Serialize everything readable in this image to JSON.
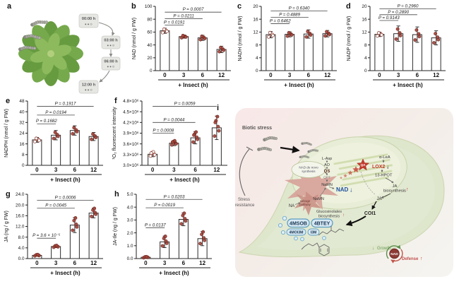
{
  "panel_a": {
    "letter": "a",
    "timepoints": [
      "00:00 h",
      "03:00 h",
      "06:00 h",
      "12:00 h"
    ],
    "box_icons": "● ● ⊙"
  },
  "charts": [
    {
      "letter": "b",
      "name": "nad",
      "ylabel": "NAD (nmol / g FW)",
      "ymin": 0,
      "ymax": 100,
      "yticks": [
        0,
        20,
        40,
        60,
        80,
        100
      ],
      "categories": [
        "0",
        "3",
        "6",
        "12"
      ],
      "xlabel": "+ Insect (h)",
      "values": [
        62,
        53,
        51,
        33
      ],
      "errors": [
        4,
        2.5,
        4,
        5
      ],
      "ndots": 4,
      "hollow0": true,
      "brackets": [
        {
          "a": 0,
          "b": 1,
          "y": 71,
          "label": "P = 0.0191"
        },
        {
          "a": 0,
          "b": 2,
          "y": 81,
          "label": "P = 0.0211"
        },
        {
          "a": 0,
          "b": 3,
          "y": 91,
          "label": "P = 0.0007"
        }
      ]
    },
    {
      "letter": "c",
      "name": "nadh",
      "ylabel": "NADH (nmol / g FW)",
      "ymin": 0,
      "ymax": 20,
      "yticks": [
        0,
        4,
        8,
        12,
        16,
        20
      ],
      "categories": [
        "0",
        "3",
        "6",
        "12"
      ],
      "xlabel": "+ Insect (h)",
      "values": [
        11.2,
        11.3,
        11.4,
        11.5
      ],
      "errors": [
        1.0,
        0.8,
        1.3,
        1.0
      ],
      "ndots": 4,
      "hollow0": true,
      "brackets": [
        {
          "a": 0,
          "b": 1,
          "y": 14.6,
          "label": "P = 0.6462"
        },
        {
          "a": 0,
          "b": 2,
          "y": 16.6,
          "label": "P = 0.4889"
        },
        {
          "a": 0,
          "b": 3,
          "y": 18.6,
          "label": "P = 0.6340"
        }
      ]
    },
    {
      "letter": "d",
      "name": "nadp",
      "ylabel": "NADP (nmol / g FW)",
      "ymin": 0,
      "ymax": 20,
      "yticks": [
        0,
        4,
        8,
        12,
        16,
        20
      ],
      "categories": [
        "0",
        "3",
        "6",
        "12"
      ],
      "xlabel": "+ Insect (h)",
      "values": [
        11.3,
        11.5,
        11.2,
        10.2
      ],
      "errors": [
        0.7,
        2.4,
        2.4,
        2.2
      ],
      "ndots": 4,
      "hollow0": true,
      "brackets": [
        {
          "a": 0,
          "b": 1,
          "y": 15.6,
          "label": "P = 0.9143"
        },
        {
          "a": 0,
          "b": 2,
          "y": 17.4,
          "label": "P = 0.2890"
        },
        {
          "a": 0,
          "b": 3,
          "y": 19.2,
          "label": "P = 0.2960"
        }
      ]
    },
    {
      "letter": "e",
      "name": "nadph",
      "ylabel": "NADPH (nmol / g FW)",
      "ymin": 0,
      "ymax": 48,
      "yticks": [
        0,
        8,
        16,
        24,
        32,
        40,
        48
      ],
      "categories": [
        "0",
        "3",
        "6",
        "12"
      ],
      "xlabel": "+ Insect (h)",
      "values": [
        19,
        22.5,
        26,
        21.5
      ],
      "errors": [
        1.8,
        3.5,
        3.5,
        3.0
      ],
      "ndots": 4,
      "hollow0": true,
      "brackets": [
        {
          "a": 0,
          "b": 1,
          "y": 31,
          "label": "P = 0.1682"
        },
        {
          "a": 0,
          "b": 2,
          "y": 37.5,
          "label": "P = 0.0194"
        },
        {
          "a": 0,
          "b": 3,
          "y": 44,
          "label": "P = 0.1917"
        }
      ]
    },
    {
      "letter": "f",
      "name": "singlet-o2",
      "ylabel": "¹O₂ fluorescent intensity",
      "ymin": 3.0,
      "ymax": 4.8,
      "yticks": [
        3.0,
        3.3,
        3.6,
        3.9,
        4.2,
        4.5,
        4.8
      ],
      "yticklabels": [
        "3.0×10⁶",
        "3.3×10⁶",
        "3.6×10⁶",
        "3.9×10⁶",
        "4.2×10⁶",
        "4.5×10⁶",
        "4.8×10⁶"
      ],
      "categories": [
        "0",
        "3",
        "6",
        "12"
      ],
      "xlabel": "+ Insect (h)",
      "mleft": 45,
      "values": [
        3.31,
        3.62,
        3.77,
        4.05
      ],
      "errors": [
        0.07,
        0.07,
        0.17,
        0.33
      ],
      "ndots": 6,
      "hollow0": true,
      "brackets": [
        {
          "a": 0,
          "b": 1,
          "y": 3.9,
          "label": "P = 0.0008"
        },
        {
          "a": 0,
          "b": 2,
          "y": 4.2,
          "label": "P = 0.0044"
        },
        {
          "a": 0,
          "b": 3,
          "y": 4.65,
          "label": "P = 0.0059"
        }
      ]
    },
    {
      "letter": "g",
      "name": "ja",
      "ylabel": "JA (ng / g FW)",
      "ymin": 0,
      "ymax": 24,
      "yticks": [
        0,
        4,
        8,
        12,
        16,
        20,
        24
      ],
      "yticklabels": [
        "0.0",
        "4.0",
        "8.0",
        "12.0",
        "16.0",
        "20.0",
        "24.0"
      ],
      "categories": [
        "0",
        "3",
        "6",
        "12"
      ],
      "xlabel": "+ Insect (h)",
      "values": [
        1.2,
        4.5,
        12.5,
        17
      ],
      "errors": [
        0.3,
        0.4,
        2.8,
        1.8
      ],
      "ndots": 5,
      "hollow0": false,
      "brackets": [
        {
          "a": 0,
          "b": 1,
          "y": 7.6,
          "label": "P = 3.6 × 10⁻⁵"
        },
        {
          "a": 0,
          "b": 2,
          "y": 18.8,
          "label": "P = 0.0045"
        },
        {
          "a": 0,
          "b": 3,
          "y": 21.8,
          "label": "P = 0.0006"
        }
      ]
    },
    {
      "letter": "h",
      "name": "ja-ile",
      "ylabel": "JA-Ile (ng / g FW)",
      "ymin": 0,
      "ymax": 5,
      "yticks": [
        0,
        1,
        2,
        3,
        4,
        5
      ],
      "yticklabels": [
        "0.0",
        "1.0",
        "2.0",
        "3.0",
        "4.0",
        "5.0"
      ],
      "categories": [
        "0",
        "3",
        "6",
        "12"
      ],
      "xlabel": "+ Insect (h)",
      "values": [
        0.1,
        1.3,
        3.05,
        1.55
      ],
      "errors": [
        0.05,
        0.45,
        0.5,
        0.55
      ],
      "ndots": 5,
      "hollow0": false,
      "brackets": [
        {
          "a": 0,
          "b": 1,
          "y": 2.4,
          "label": "P = 0.0137"
        },
        {
          "a": 0,
          "b": 2,
          "y": 3.95,
          "label": "P = 0.0019"
        },
        {
          "a": 0,
          "b": 3,
          "y": 4.6,
          "label": "P = 0.0203"
        }
      ]
    }
  ],
  "panel_i": {
    "letter": "i",
    "biotic_stress": "Biotic stress",
    "stress_resistance_1": "Stress",
    "stress_resistance_2": "resistance",
    "nad_de_novo_1": "NAD de novo",
    "nad_de_novo_2": "synthesis",
    "l_asp": "L-Asp",
    "ao": "AO",
    "qs": "QS",
    "qpt": "QPT",
    "namn": "NaMN",
    "nad": "NAD",
    "nad_arrow": "↓",
    "namn2": "NaMN",
    "salvage_1": "salvage",
    "salvage_2": "pathway",
    "na": "NA",
    "qa": "QA",
    "alea": "α-LeA",
    "lox2": "LOX2",
    "lox2_arrow": "↓",
    "hpot": "13-HPOT",
    "ja_bio_1": "JA",
    "ja_bio_2": "biosynthesis",
    "ja_bio_arrow": "↑",
    "ja": "JA",
    "coi1": "COI1",
    "glucs_1": "Glucosinolates",
    "glucs_2": "biosynthesis",
    "glucs_arrow": "↑",
    "pills": [
      "4MSOB",
      "4BTEY",
      "4MOI3M",
      "I3M"
    ],
    "growth_arrow": "↓",
    "growth": "Growth",
    "nad_circle": "NAD",
    "defense": "Defense",
    "defense_arrow": "↑",
    "colors": {
      "nad_blue": "#1f4f9e",
      "lox2_red": "#c0392b",
      "growth_green": "#6a9a55",
      "defense_red": "#c0504d",
      "pill_fill": "#d8eaf5",
      "pill_stroke": "#5d9cbe"
    }
  }
}
